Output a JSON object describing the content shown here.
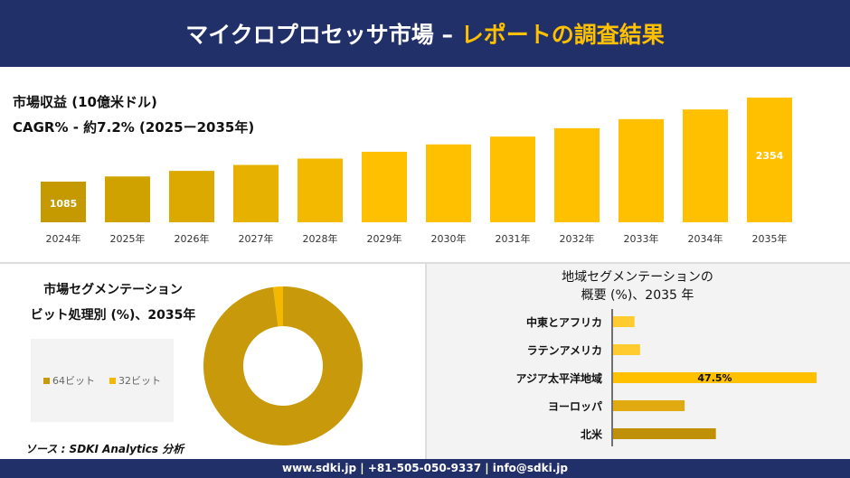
{
  "header": {
    "title_main": "マイクロプロセッサ市場 –",
    "title_accent": "レポートの調査結果"
  },
  "revenue": {
    "label": "市場収益 (10億米ドル)",
    "cagr": "CAGR% - 約7.2% (2025ー2035年)"
  },
  "chart_data": [
    {
      "type": "bar",
      "categories": [
        "2024年",
        "2025年",
        "2026年",
        "2027年",
        "2028年",
        "2029年",
        "2030年",
        "2031年",
        "2032年",
        "2033年",
        "2034年",
        "2035年"
      ],
      "values": [
        1085,
        1163,
        1247,
        1337,
        1433,
        1536,
        1647,
        1765,
        1892,
        2029,
        2175,
        2354
      ],
      "data_labels": {
        "0": "1085",
        "11": "2354"
      },
      "colors": [
        "#c49a00",
        "#ffc000"
      ]
    },
    {
      "type": "pie",
      "title": "市場セグメンテーション ビット処理別 (%)、2035年",
      "title_lines": [
        "市場セグメンテーション",
        "ビット処理別 (%)、2035年"
      ],
      "labels": [
        "64ビット",
        "32ビット"
      ],
      "values": [
        98,
        2
      ],
      "colors": [
        "#c8990a",
        "#f5b800"
      ],
      "donut": true,
      "legend": "left"
    },
    {
      "type": "bar",
      "orientation": "horizontal",
      "title_lines": [
        "地域セグメンテーションの",
        "概要 (%)、2035 年"
      ],
      "categories": [
        "中東とアフリカ",
        "ラテンアメリカ",
        "アジア太平洋地域",
        "ヨーロッパ",
        "北米"
      ],
      "values": [
        5,
        6.3,
        47.5,
        16.7,
        24
      ],
      "data_labels": {
        "2": "47.5%"
      },
      "colors": [
        "#ffcb2e",
        "#ffcb2e",
        "#ffc000",
        "#e0aa10",
        "#c09008"
      ]
    }
  ],
  "source": "ソース : SDKI Analytics 分析",
  "footer": "www.sdki.jp | +81-505-050-9337 | info@sdki.jp"
}
